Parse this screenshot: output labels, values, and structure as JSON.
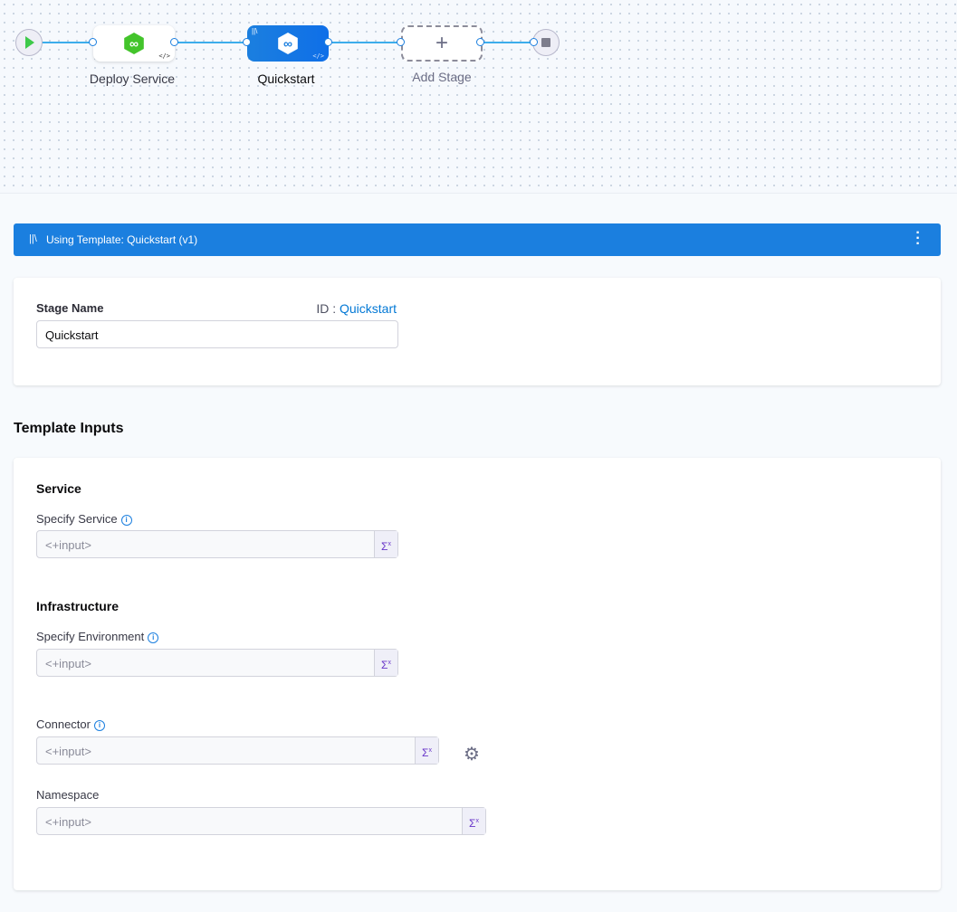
{
  "pipeline": {
    "stages": [
      {
        "label": "Deploy Service",
        "icon": "deploy-infinity-icon"
      },
      {
        "label": "Quickstart",
        "icon": "template-infinity-icon",
        "selected": true
      },
      {
        "label": "Add Stage",
        "icon": "plus-icon"
      }
    ]
  },
  "banner": {
    "text": "Using Template: Quickstart (v1)",
    "color": "#1b7fdf"
  },
  "stage": {
    "name_label": "Stage Name",
    "id_prefix": "ID : ",
    "id_value": "Quickstart",
    "name_value": "Quickstart"
  },
  "template_inputs": {
    "title": "Template Inputs",
    "service_section": "Service",
    "service_label": "Specify Service",
    "service_value": "<+input>",
    "infra_section": "Infrastructure",
    "env_label": "Specify Environment",
    "env_value": "<+input>",
    "connector_label": "Connector",
    "connector_value": "<+input>",
    "namespace_label": "Namespace",
    "namespace_value": "<+input>"
  },
  "expr_symbol": "Σ",
  "expr_sup": "x"
}
